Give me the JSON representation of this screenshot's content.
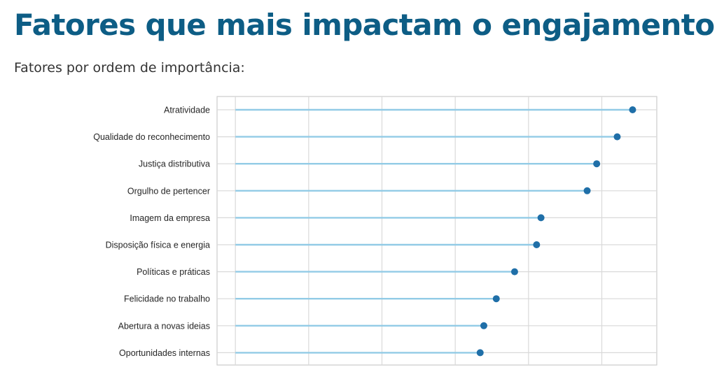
{
  "header": {
    "title": "Fatores que mais impactam o engajamento",
    "subtitle": "Fatores por ordem de importância:"
  },
  "colors": {
    "title": "#0d5d85",
    "stem": "#92cbe6",
    "marker": "#1f6fa8",
    "grid": "#d9d9d9",
    "frame": "#cccccc"
  },
  "chart_data": {
    "type": "lollipop",
    "orientation": "horizontal",
    "categories": [
      "Atratividade",
      "Qualidade do reconhecimento",
      "Justiça distributiva",
      "Orgulho de pertencer",
      "Imagem da empresa",
      "Disposição física e energia",
      "Políticas e práticas",
      "Felicidade no trabalho",
      "Abertura a novas ideias",
      "Oportunidades internas"
    ],
    "values": [
      5.42,
      5.21,
      4.93,
      4.8,
      4.17,
      4.11,
      3.81,
      3.56,
      3.39,
      3.34
    ],
    "xlim": [
      -0.25,
      5.75
    ],
    "x_gridlines": [
      0,
      1,
      2,
      3,
      4,
      5
    ],
    "x_tick_labels_shown": false,
    "grid": true,
    "legend": "none"
  }
}
